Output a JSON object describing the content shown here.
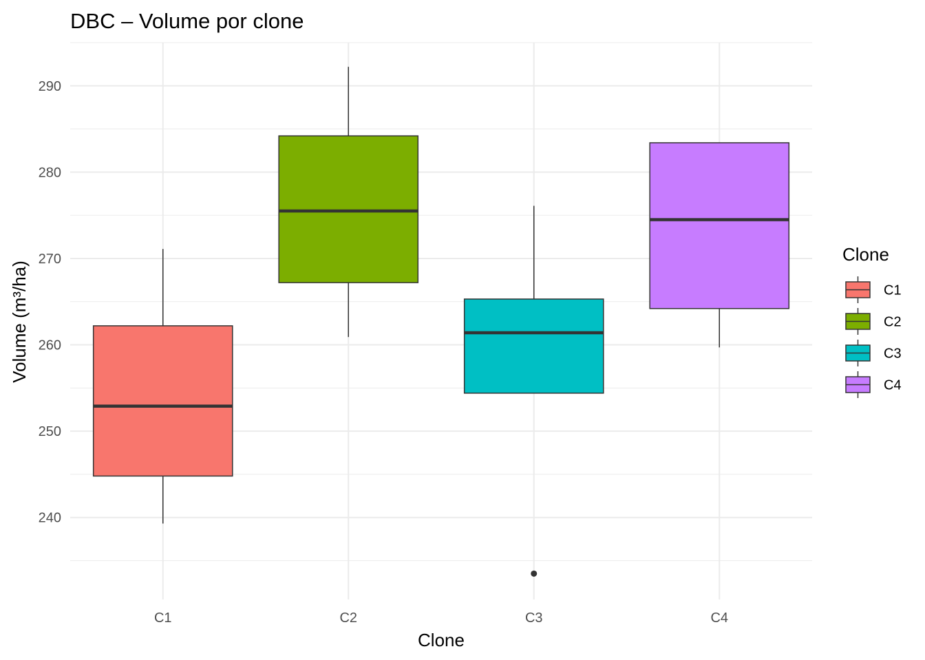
{
  "chart_data": {
    "type": "boxplot",
    "title": "DBC – Volume por clone",
    "xlabel": "Clone",
    "ylabel": "Volume (m³/ha)",
    "categories": [
      "C1",
      "C2",
      "C3",
      "C4"
    ],
    "ylim": [
      230.5,
      295
    ],
    "yticks": [
      240,
      250,
      260,
      270,
      280,
      290
    ],
    "grid": true,
    "boxes": [
      {
        "category": "C1",
        "lower_whisker": 239.3,
        "q1": 244.8,
        "median": 252.9,
        "q3": 262.2,
        "upper_whisker": 271.1,
        "outliers": [],
        "color": "#F8766D"
      },
      {
        "category": "C2",
        "lower_whisker": 260.9,
        "q1": 267.2,
        "median": 275.5,
        "q3": 284.2,
        "upper_whisker": 292.2,
        "outliers": [],
        "color": "#7CAE00"
      },
      {
        "category": "C3",
        "lower_whisker": 254.4,
        "q1": 254.4,
        "median": 261.4,
        "q3": 265.3,
        "upper_whisker": 276.1,
        "outliers": [
          233.5
        ],
        "color": "#00BFC4"
      },
      {
        "category": "C4",
        "lower_whisker": 259.7,
        "q1": 264.2,
        "median": 274.5,
        "q3": 283.4,
        "upper_whisker": 283.4,
        "outliers": [],
        "color": "#C77CFF"
      }
    ],
    "legend": {
      "title": "Clone",
      "position": "right",
      "entries": [
        {
          "label": "C1",
          "color": "#F8766D"
        },
        {
          "label": "C2",
          "color": "#7CAE00"
        },
        {
          "label": "C3",
          "color": "#00BFC4"
        },
        {
          "label": "C4",
          "color": "#C77CFF"
        }
      ]
    }
  }
}
